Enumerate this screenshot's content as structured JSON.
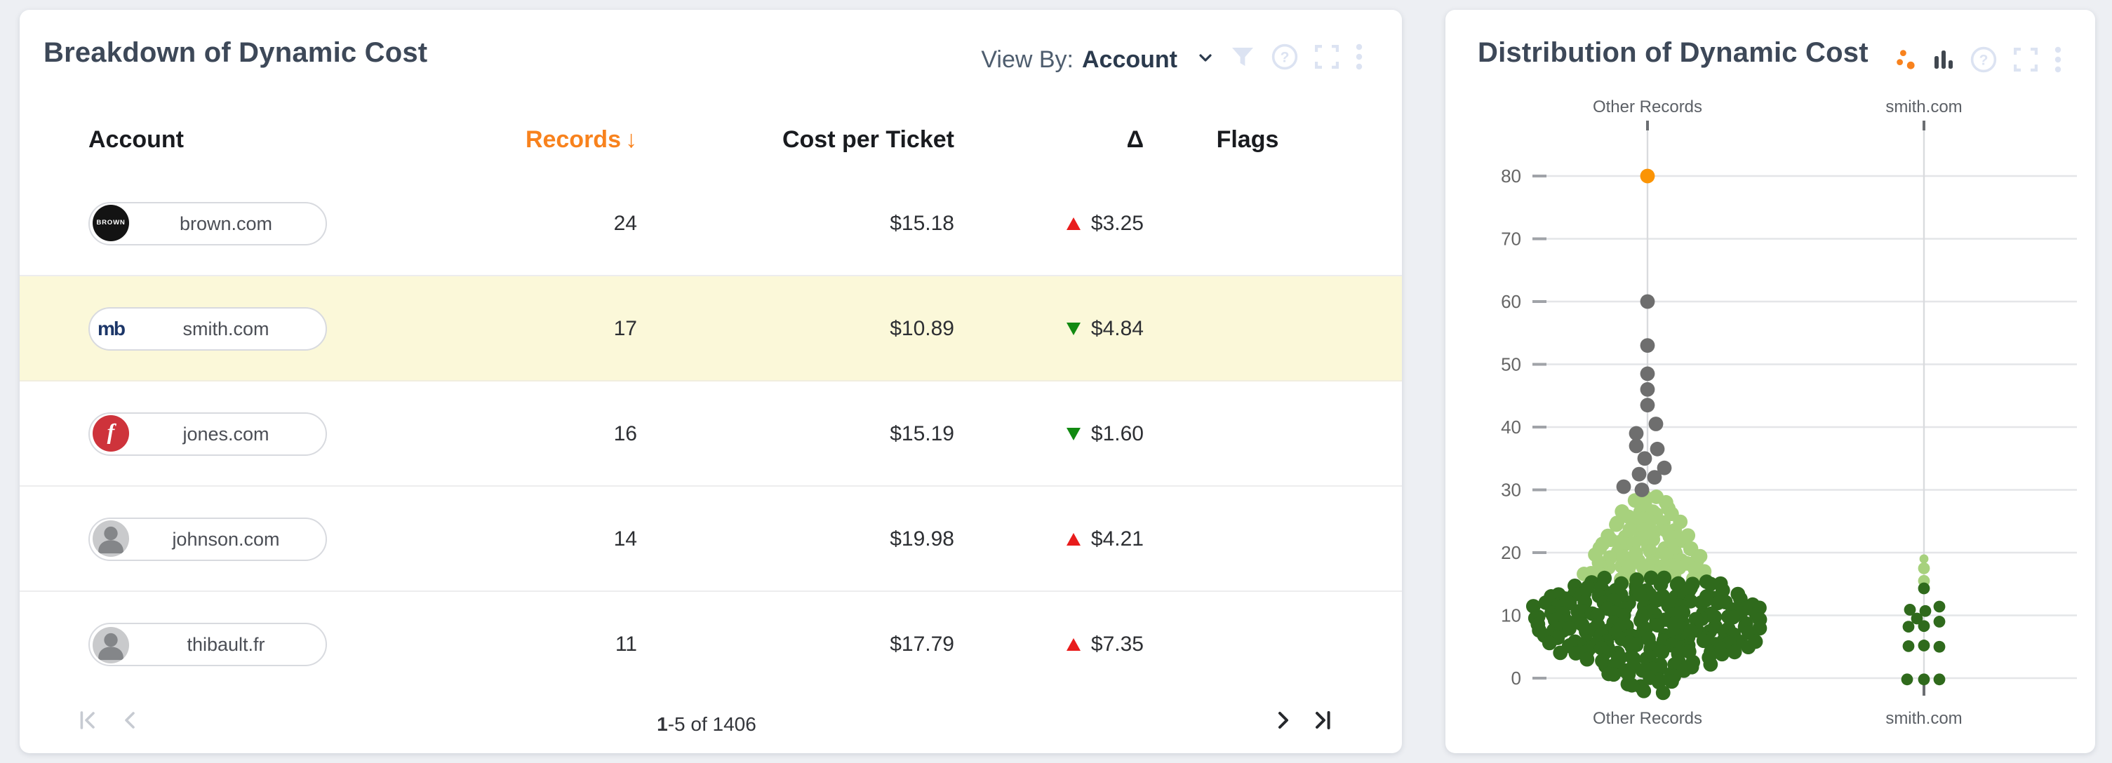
{
  "colors": {
    "accent_orange": "#f8821d",
    "delta_up_red": "#e81c1c",
    "delta_down_green": "#118a11",
    "highlight_row_yellow": "#fbf8d9",
    "dot_orange": "#fb9405",
    "dot_gray": "#6e6e6e",
    "dot_light_green": "#a7d17d",
    "dot_dark_green": "#2f6a1c"
  },
  "breakdown_panel": {
    "title": "Breakdown of Dynamic Cost",
    "view_by_label": "View By:",
    "view_by_value": "Account",
    "columns": {
      "account": "Account",
      "records": "Records",
      "sort_indicator": "↓",
      "cost_per_ticket": "Cost per Ticket",
      "delta": "Δ",
      "flags": "Flags"
    },
    "rows": [
      {
        "account": "brown.com",
        "avatar_style": "brown",
        "avatar_text": "BROWN",
        "records": "24",
        "cost": "$15.18",
        "delta_dir": "up",
        "delta": "$3.25",
        "flags": "",
        "highlighted": false
      },
      {
        "account": "smith.com",
        "avatar_style": "mb",
        "avatar_text": "mb",
        "records": "17",
        "cost": "$10.89",
        "delta_dir": "down",
        "delta": "$4.84",
        "flags": "",
        "highlighted": true
      },
      {
        "account": "jones.com",
        "avatar_style": "red",
        "avatar_text": "f",
        "records": "16",
        "cost": "$15.19",
        "delta_dir": "down",
        "delta": "$1.60",
        "flags": "",
        "highlighted": false
      },
      {
        "account": "johnson.com",
        "avatar_style": "person",
        "avatar_text": "",
        "records": "14",
        "cost": "$19.98",
        "delta_dir": "up",
        "delta": "$4.21",
        "flags": "",
        "highlighted": false
      },
      {
        "account": "thibault.fr",
        "avatar_style": "person",
        "avatar_text": "",
        "records": "11",
        "cost": "$17.79",
        "delta_dir": "up",
        "delta": "$7.35",
        "flags": "",
        "highlighted": false
      }
    ],
    "pagination": {
      "range_start": "1",
      "range_rest": "-5 of 1406"
    }
  },
  "chart_data": {
    "type": "beeswarm",
    "title": "Distribution of Dynamic Cost",
    "ylabel": "",
    "ylim": [
      0,
      80
    ],
    "yticks": [
      0,
      10,
      20,
      30,
      40,
      50,
      60,
      70,
      80
    ],
    "grid": true,
    "columns": [
      {
        "label": "Other Records",
        "dot_radius": 5.2,
        "points": [
          {
            "v": 80,
            "dx": 0,
            "c": "dot_orange"
          },
          {
            "v": 60,
            "dx": 0,
            "c": "dot_gray"
          },
          {
            "v": 53,
            "dx": 0,
            "c": "dot_gray"
          },
          {
            "v": 48.5,
            "dx": 0,
            "c": "dot_gray"
          },
          {
            "v": 46,
            "dx": 0,
            "c": "dot_gray"
          },
          {
            "v": 43.5,
            "dx": 0,
            "c": "dot_gray"
          },
          {
            "v": 40.5,
            "dx": 6,
            "c": "dot_gray"
          },
          {
            "v": 39,
            "dx": -8,
            "c": "dot_gray"
          },
          {
            "v": 37,
            "dx": -8,
            "c": "dot_gray"
          },
          {
            "v": 36.5,
            "dx": 7,
            "c": "dot_gray"
          },
          {
            "v": 35,
            "dx": -2,
            "c": "dot_gray"
          },
          {
            "v": 33.5,
            "dx": 12,
            "c": "dot_gray"
          },
          {
            "v": 32.5,
            "dx": -6,
            "c": "dot_gray"
          },
          {
            "v": 32,
            "dx": 5,
            "c": "dot_gray"
          },
          {
            "v": 30.5,
            "dx": -17,
            "c": "dot_gray"
          },
          {
            "v": 30,
            "dx": -4,
            "c": "dot_gray"
          }
        ],
        "bands": [
          {
            "c": "dot_light_green",
            "rows": [
              [
                29.6,
                1
              ],
              [
                28.7,
                2
              ],
              [
                27.7,
                3
              ],
              [
                26.8,
                4
              ],
              [
                25.8,
                4
              ],
              [
                24.9,
                5
              ],
              [
                23.9,
                5
              ],
              [
                23.0,
                6
              ],
              [
                22.0,
                6
              ],
              [
                21.1,
                7
              ],
              [
                20.1,
                7
              ],
              [
                19.2,
                8
              ],
              [
                18.2,
                8
              ],
              [
                17.3,
                9
              ],
              [
                16.3,
                9
              ]
            ]
          },
          {
            "c": "dot_dark_green",
            "rows": [
              [
                15.4,
                9
              ],
              [
                14.5,
                11
              ],
              [
                13.6,
                13
              ],
              [
                12.7,
                14
              ],
              [
                11.8,
                15
              ],
              [
                10.9,
                16
              ],
              [
                10.0,
                16
              ],
              [
                9.1,
                16
              ],
              [
                8.2,
                16
              ],
              [
                7.3,
                15
              ],
              [
                6.4,
                15
              ],
              [
                5.5,
                14
              ],
              [
                4.6,
                13
              ],
              [
                3.7,
                11
              ],
              [
                2.8,
                9
              ],
              [
                1.9,
                7
              ],
              [
                1.0,
                6
              ],
              [
                0.1,
                5
              ],
              [
                -0.8,
                4
              ],
              [
                -1.7,
                3
              ]
            ]
          }
        ]
      },
      {
        "label": "smith.com",
        "dot_radius": 4.2,
        "points": [
          {
            "v": 19,
            "dx": 0,
            "c": "dot_light_green",
            "r": 3.2
          },
          {
            "v": 17.5,
            "dx": 0,
            "c": "dot_light_green"
          },
          {
            "v": 15.5,
            "dx": 0,
            "c": "dot_light_green"
          },
          {
            "v": 14.3,
            "dx": 0,
            "c": "dot_dark_green"
          },
          {
            "v": 11.4,
            "dx": 11,
            "c": "dot_dark_green"
          },
          {
            "v": 10.9,
            "dx": -10,
            "c": "dot_dark_green"
          },
          {
            "v": 10.7,
            "dx": 1,
            "c": "dot_dark_green"
          },
          {
            "v": 9.5,
            "dx": -5,
            "c": "dot_dark_green"
          },
          {
            "v": 9.0,
            "dx": 11,
            "c": "dot_dark_green"
          },
          {
            "v": 8.3,
            "dx": 0,
            "c": "dot_dark_green"
          },
          {
            "v": 8.2,
            "dx": -11,
            "c": "dot_dark_green"
          },
          {
            "v": 5.2,
            "dx": 0,
            "c": "dot_dark_green"
          },
          {
            "v": 5.1,
            "dx": -11,
            "c": "dot_dark_green"
          },
          {
            "v": 5.0,
            "dx": 11,
            "c": "dot_dark_green"
          },
          {
            "v": -0.2,
            "dx": -12,
            "c": "dot_dark_green"
          },
          {
            "v": -0.2,
            "dx": 0,
            "c": "dot_dark_green"
          },
          {
            "v": -0.2,
            "dx": 11,
            "c": "dot_dark_green"
          }
        ],
        "bands": []
      }
    ]
  }
}
